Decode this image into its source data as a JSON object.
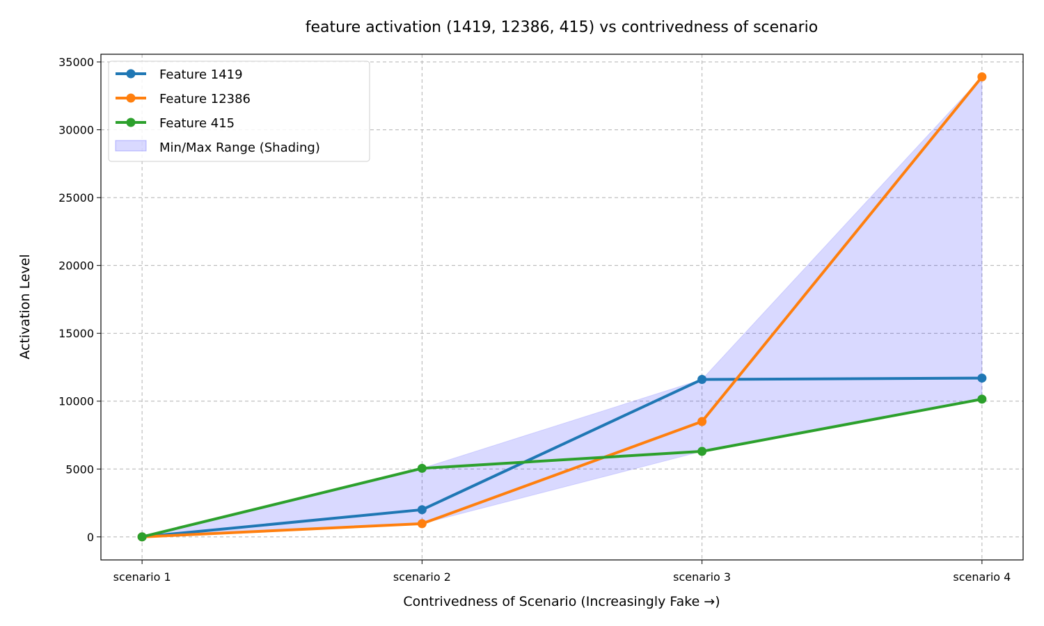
{
  "chart_data": {
    "type": "line",
    "title": "feature activation (1419, 12386, 415) vs contrivedness of scenario",
    "xlabel": "Contrivedness of Scenario (Increasingly Fake →)",
    "ylabel": "Activation Level",
    "categories": [
      "scenario 1",
      "scenario 2",
      "scenario 3",
      "scenario 4"
    ],
    "yticks": [
      0,
      5000,
      10000,
      15000,
      20000,
      25000,
      30000,
      35000
    ],
    "ylim": [
      -1700,
      35565
    ],
    "xlim": [
      -0.147,
      3.147
    ],
    "grid": true,
    "legend_position": "top-left",
    "series": [
      {
        "name": "Feature 1419",
        "color": "#1f77b4",
        "values": [
          0,
          2000,
          11600,
          11700
        ]
      },
      {
        "name": "Feature 12386",
        "color": "#ff7f0e",
        "values": [
          0,
          970,
          8500,
          33900
        ]
      },
      {
        "name": "Feature 415",
        "color": "#2ca02c",
        "values": [
          0,
          5050,
          6300,
          10150
        ]
      }
    ],
    "shading": {
      "name": "Min/Max Range (Shading)",
      "color": "#0000ff",
      "opacity": 0.15
    }
  }
}
